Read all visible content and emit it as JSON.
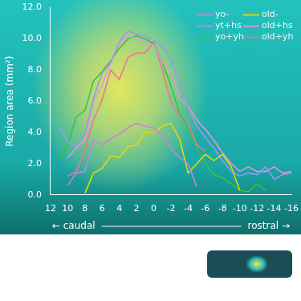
{
  "chart_data": {
    "type": "line",
    "y_label": "Region area (mm²)",
    "annotations": [
      "← caudal",
      "rostral →"
    ],
    "x": [
      11,
      10,
      9,
      8,
      7,
      6,
      5,
      4,
      3,
      2,
      1,
      0,
      -1,
      -2,
      -3,
      -4,
      -5,
      -6,
      -7,
      -8,
      -9,
      -10,
      -11,
      -12,
      -13,
      -14,
      -15,
      -16
    ],
    "series": [
      {
        "name": "yo-",
        "color": "#cc7fe0",
        "values": [
          null,
          0.6,
          1.4,
          1.5,
          3.5,
          3.2,
          3.6,
          3.9,
          4.3,
          4.6,
          4.4,
          4.3,
          3.8,
          3.0,
          2.4,
          2.0,
          0.5,
          null,
          null,
          null,
          null,
          null,
          null,
          null,
          null,
          null,
          null,
          null
        ]
      },
      {
        "name": "old-",
        "color": "#e6d800",
        "values": [
          null,
          null,
          null,
          0.1,
          1.4,
          1.7,
          2.5,
          2.4,
          3.1,
          3.2,
          4.0,
          4.0,
          4.4,
          4.6,
          3.6,
          1.4,
          2.0,
          2.6,
          2.2,
          2.6,
          1.8,
          0.3,
          null,
          null,
          null,
          null,
          null,
          null
        ]
      },
      {
        "name": "yt+hs",
        "color": "#9a96f5",
        "values": [
          4.3,
          3.4,
          3.1,
          3.9,
          6.2,
          7.8,
          8.5,
          9.8,
          10.5,
          10.3,
          10.2,
          9.9,
          9.5,
          8.7,
          7.2,
          5.6,
          4.4,
          3.7,
          3.0,
          2.2,
          1.5,
          1.2,
          1.4,
          1.3,
          1.8,
          1.0,
          1.3,
          1.4
        ]
      },
      {
        "name": "old+hs",
        "color": "#e596d2",
        "values": [
          null,
          2.4,
          3.0,
          3.5,
          6.0,
          7.0,
          8.5,
          9.7,
          10.2,
          10.0,
          9.8,
          9.6,
          8.5,
          7.9,
          6.2,
          5.7,
          4.8,
          4.2,
          3.5,
          2.7,
          2.0,
          1.5,
          1.8,
          1.5,
          1.5,
          1.8,
          1.4,
          1.5
        ]
      },
      {
        "name": "yo+yh",
        "color": "#3cc23c",
        "values": [
          2.3,
          3.2,
          5.0,
          5.4,
          7.3,
          7.9,
          8.6,
          9.4,
          10.0,
          10.2,
          10.0,
          9.7,
          8.5,
          7.0,
          5.2,
          4.3,
          3.0,
          2.0,
          1.3,
          1.1,
          0.7,
          0.3,
          0.2,
          0.7,
          0.3,
          null,
          null,
          null
        ]
      },
      {
        "name": "old+yh",
        "color": "#f27396",
        "values": [
          null,
          1.2,
          1.5,
          2.9,
          4.8,
          6.1,
          8.0,
          7.4,
          8.8,
          9.1,
          9.1,
          9.8,
          8.0,
          6.0,
          5.0,
          4.6,
          3.2,
          2.8,
          null,
          null,
          null,
          null,
          null,
          null,
          null,
          null,
          null,
          null
        ]
      }
    ],
    "xlim": [
      12,
      -16
    ],
    "xticks": [
      12,
      10,
      8,
      6,
      4,
      2,
      0,
      -2,
      -4,
      -6,
      -8,
      -10,
      -12,
      -14,
      -16
    ],
    "ylim": [
      0,
      12
    ],
    "yticks": [
      {
        "value": 0,
        "label": "0.0"
      },
      {
        "value": 2,
        "label": "2.0"
      },
      {
        "value": 4,
        "label": "4.0"
      },
      {
        "value": 6,
        "label": "6.0"
      },
      {
        "value": 8,
        "label": "8.0"
      },
      {
        "value": 10,
        "label": "10.0"
      },
      {
        "value": 12,
        "label": "12.0"
      }
    ],
    "grid": false,
    "legend": "upper right"
  }
}
